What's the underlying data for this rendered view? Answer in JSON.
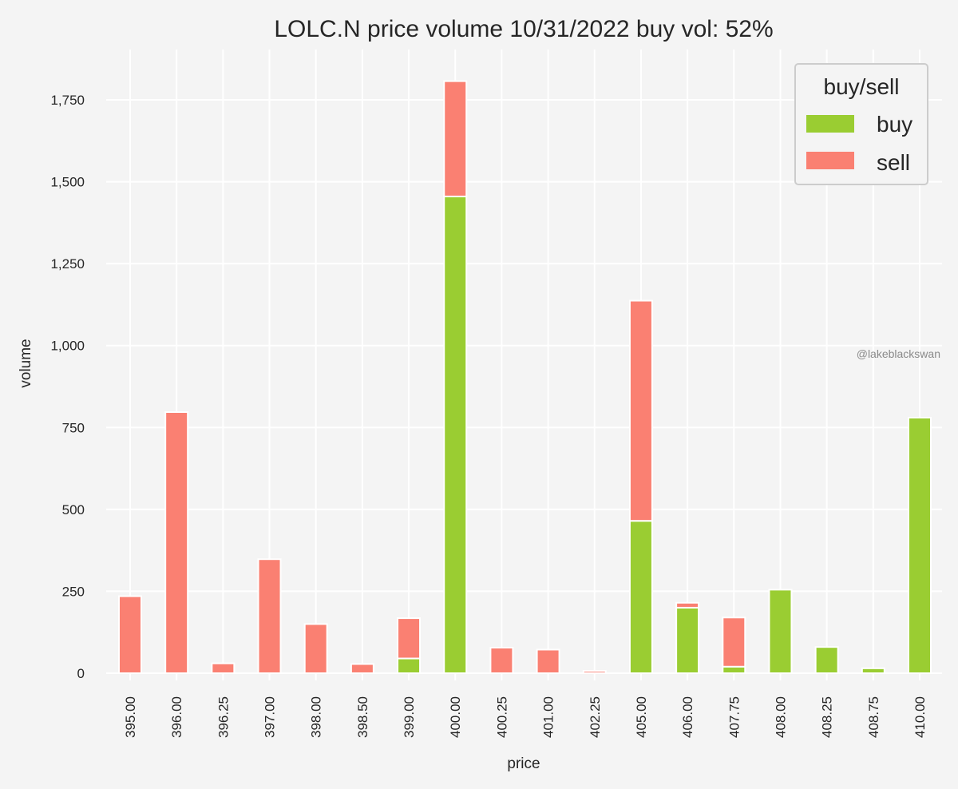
{
  "chart_data": {
    "type": "bar",
    "stacked": true,
    "title": "LOLC.N price volume 10/31/2022 buy vol: 52%",
    "xlabel": "price",
    "ylabel": "volume",
    "categories": [
      "395.00",
      "396.00",
      "396.25",
      "397.00",
      "398.00",
      "398.50",
      "399.00",
      "400.00",
      "400.25",
      "401.00",
      "402.25",
      "405.00",
      "406.00",
      "407.75",
      "408.00",
      "408.25",
      "408.75",
      "410.00"
    ],
    "series": [
      {
        "name": "buy",
        "color": "#9acd32",
        "values": [
          0,
          0,
          0,
          0,
          0,
          0,
          45,
          1455,
          0,
          0,
          0,
          465,
          200,
          20,
          255,
          80,
          15,
          780
        ]
      },
      {
        "name": "sell",
        "color": "#fa8072",
        "values": [
          235,
          797,
          30,
          348,
          150,
          28,
          123,
          352,
          78,
          72,
          7,
          672,
          15,
          150,
          0,
          0,
          0,
          0
        ]
      }
    ],
    "ylim": [
      0,
      1900
    ],
    "yticks": [
      0,
      250,
      500,
      750,
      1000,
      1250,
      1500,
      1750
    ],
    "ytick_labels": [
      "0",
      "250",
      "500",
      "750",
      "1,000",
      "1,250",
      "1,500",
      "1,750"
    ],
    "grid": true,
    "legend": {
      "title": "buy/sell",
      "placement": "top-right",
      "entries": [
        "buy",
        "sell"
      ]
    },
    "watermark": "@lakeblackswan"
  }
}
